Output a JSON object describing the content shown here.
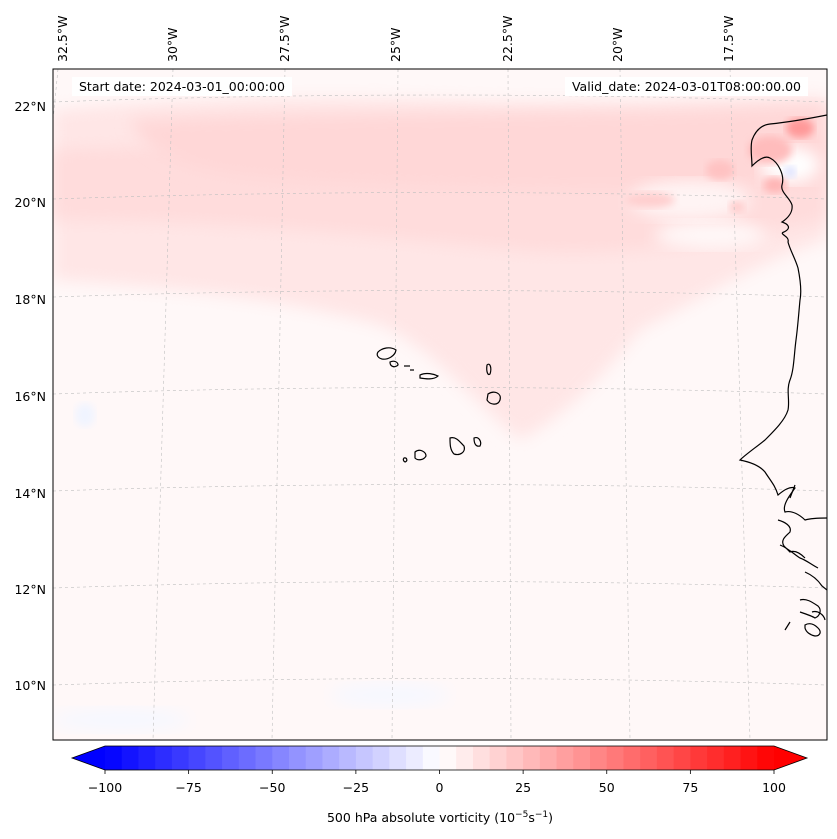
{
  "map": {
    "start_date": "Start date: 2024-03-01_00:00:00",
    "valid_date": "Valid_date: 2024-03-01T08:00:00.00",
    "lon_labels": [
      "32.5°W",
      "30°W",
      "27.5°W",
      "25°W",
      "22.5°W",
      "20°W",
      "17.5°W"
    ],
    "lat_labels": [
      "22°N",
      "20°N",
      "18°N",
      "16°N",
      "14°N",
      "12°N",
      "10°N"
    ],
    "features": [
      "Cape Verde islands",
      "West African coastline"
    ]
  },
  "colorbar": {
    "label_main": "500 hPa absolute vorticity (10",
    "label_exp1": "−5",
    "label_mid": "s",
    "label_exp2": "−1",
    "label_end": ")",
    "ticks": [
      "−100",
      "−75",
      "−50",
      "−25",
      "0",
      "25",
      "50",
      "75",
      "100"
    ],
    "vmin": -100,
    "vmax": 100,
    "levels": 40,
    "colors": {
      "min": "#0000ff",
      "mid": "#ffffff",
      "max": "#ff0000"
    }
  }
}
